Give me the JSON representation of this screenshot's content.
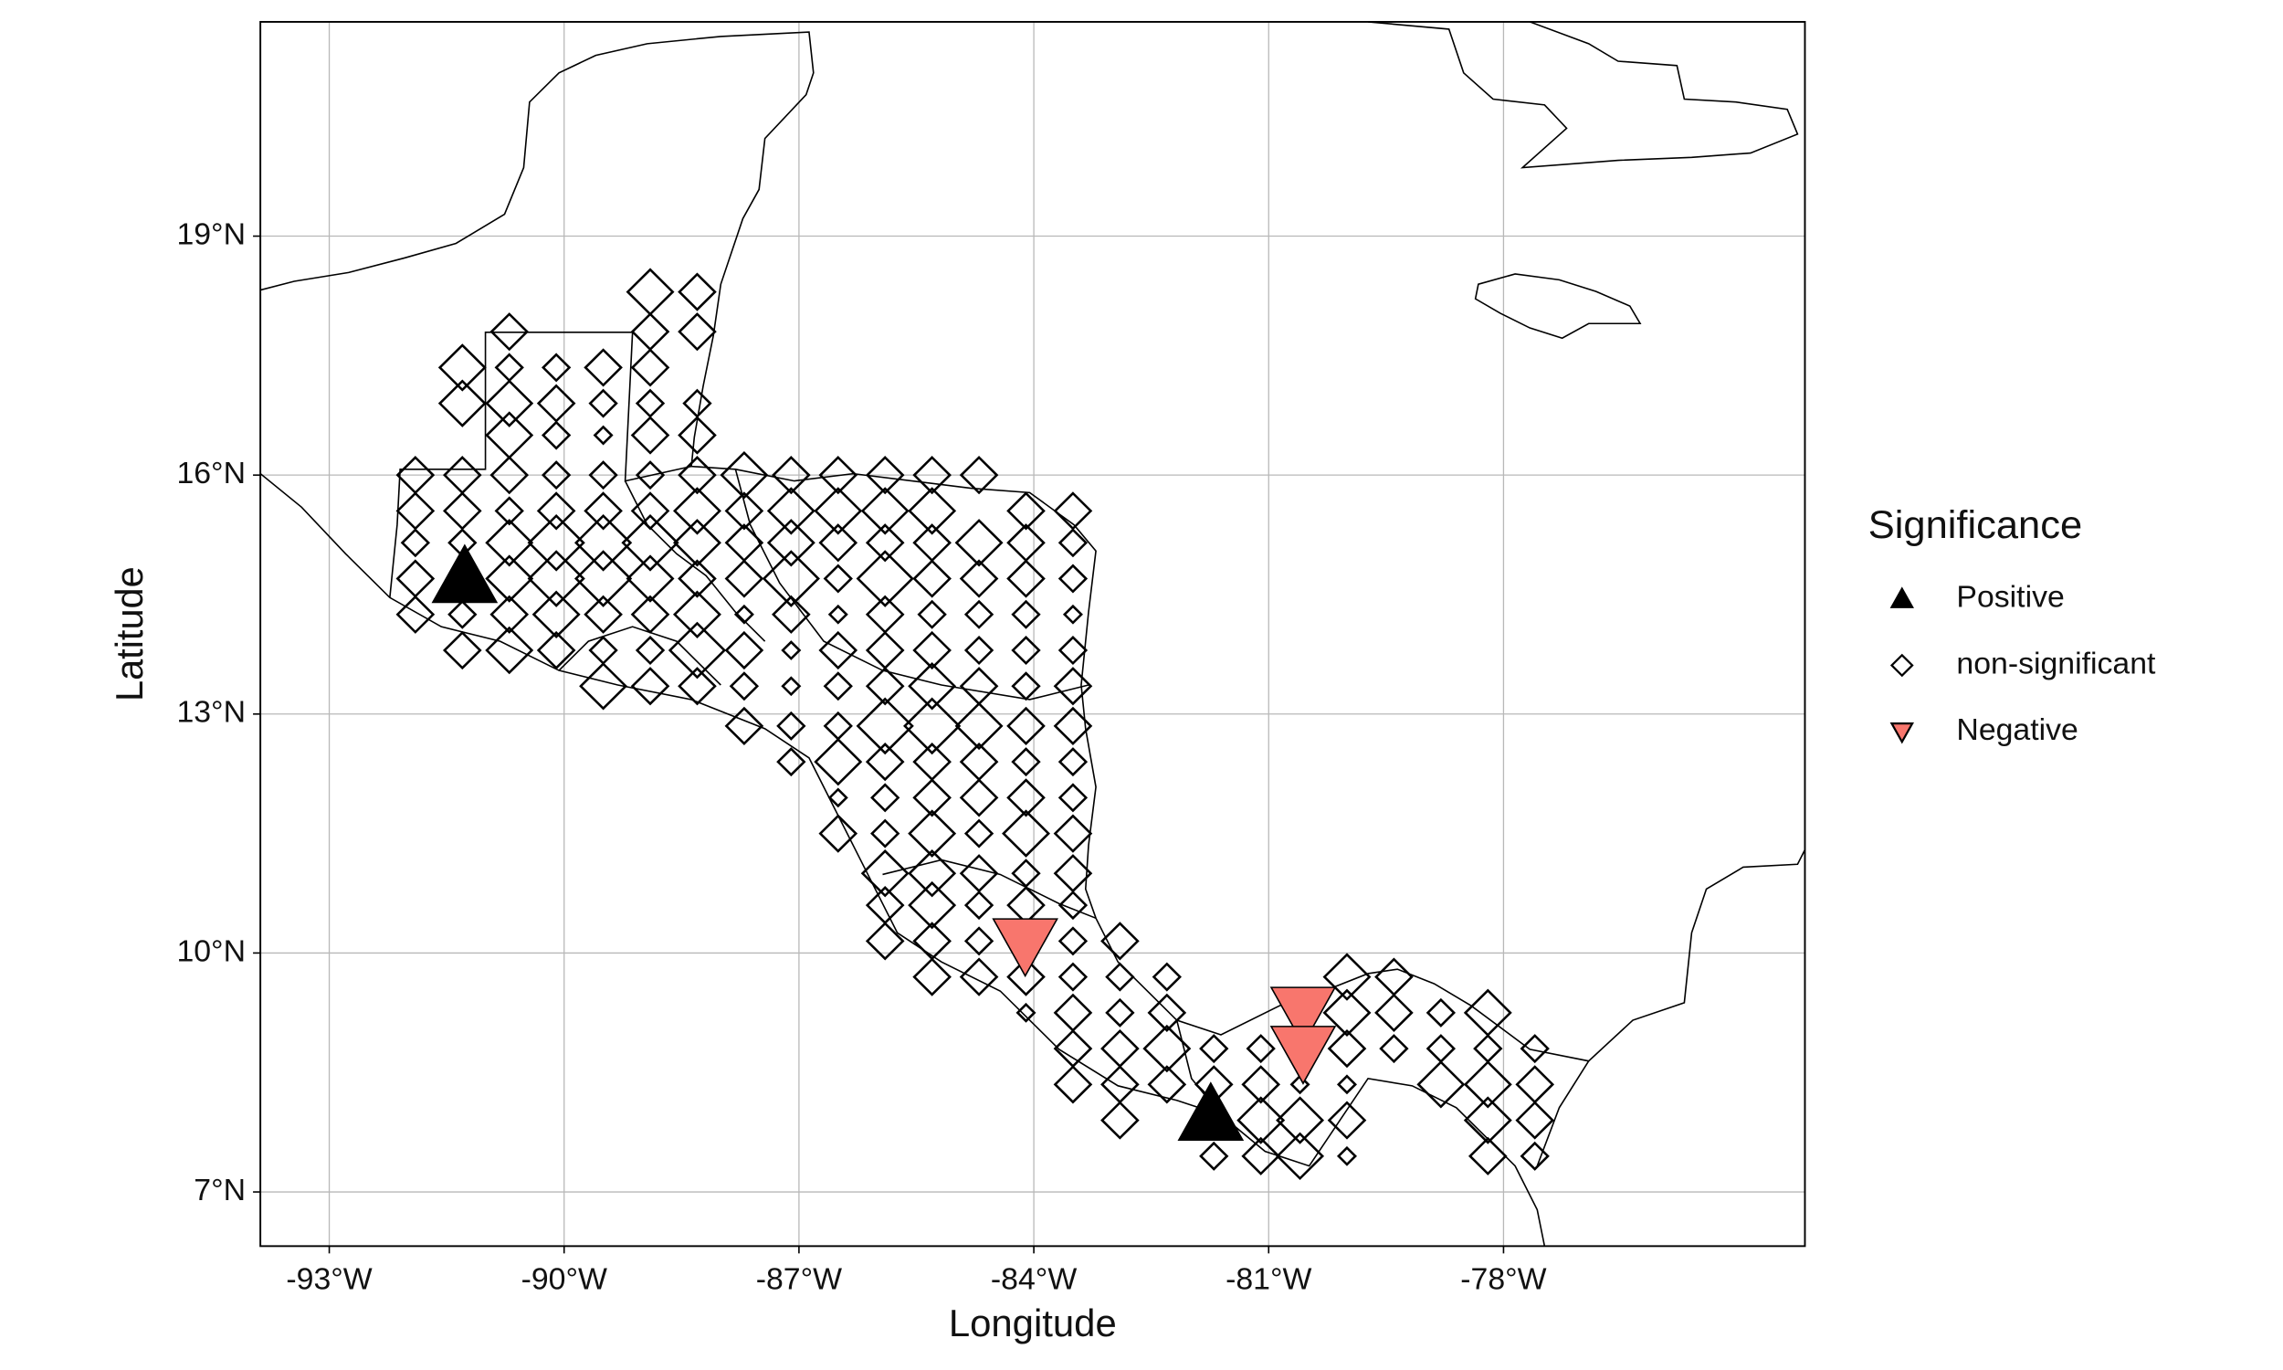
{
  "chart_data": {
    "type": "scatter",
    "xlabel": "Longitude",
    "ylabel": "Latitude",
    "legend_title": "Significance",
    "legend": "right",
    "grid": true,
    "xlim": [
      -93.88,
      -74.15
    ],
    "ylim": [
      6.32,
      21.69
    ],
    "xticks": [
      {
        "value": -93,
        "label": "-93°W"
      },
      {
        "value": -90,
        "label": "-90°W"
      },
      {
        "value": -87,
        "label": "-87°W"
      },
      {
        "value": -84,
        "label": "-84°W"
      },
      {
        "value": -81,
        "label": "-81°W"
      },
      {
        "value": -78,
        "label": "-78°W"
      }
    ],
    "yticks": [
      {
        "value": 7,
        "label": "7°N"
      },
      {
        "value": 10,
        "label": "10°N"
      },
      {
        "value": 13,
        "label": "13°N"
      },
      {
        "value": 16,
        "label": "16°N"
      },
      {
        "value": 19,
        "label": "19°N"
      }
    ],
    "series": [
      {
        "name": "Positive",
        "marker": "triangle-up",
        "color": "#000000",
        "x": [
          -91.27,
          -81.74
        ],
        "y": [
          14.72,
          7.97
        ],
        "sizes": [
          6,
          6
        ]
      },
      {
        "name": "non-significant",
        "marker": "diamond",
        "color": "none",
        "x": [
          -91.9,
          -91.9,
          -91.9,
          -91.9,
          -91.9,
          -91.3,
          -91.3,
          -91.3,
          -91.3,
          -91.3,
          -91.3,
          -91.3,
          -90.7,
          -90.7,
          -90.7,
          -90.7,
          -90.7,
          -90.7,
          -90.7,
          -90.7,
          -90.7,
          -90.7,
          -90.1,
          -90.1,
          -90.1,
          -90.1,
          -90.1,
          -90.1,
          -90.1,
          -90.1,
          -90.1,
          -89.5,
          -89.5,
          -89.5,
          -89.5,
          -89.5,
          -89.5,
          -89.5,
          -89.5,
          -89.5,
          -89.5,
          -88.9,
          -88.9,
          -88.9,
          -88.9,
          -88.9,
          -88.9,
          -88.9,
          -88.9,
          -88.9,
          -88.9,
          -88.9,
          -88.9,
          -88.3,
          -88.3,
          -88.3,
          -88.3,
          -88.3,
          -88.3,
          -88.3,
          -88.3,
          -88.3,
          -88.3,
          -88.3,
          -87.7,
          -87.7,
          -87.7,
          -87.7,
          -87.7,
          -87.7,
          -87.7,
          -87.7,
          -87.1,
          -87.1,
          -87.1,
          -87.1,
          -87.1,
          -87.1,
          -87.1,
          -87.1,
          -87.1,
          -86.5,
          -86.5,
          -86.5,
          -86.5,
          -86.5,
          -86.5,
          -86.5,
          -86.5,
          -86.5,
          -86.5,
          -86.5,
          -85.9,
          -85.9,
          -85.9,
          -85.9,
          -85.9,
          -85.9,
          -85.9,
          -85.9,
          -85.9,
          -85.9,
          -85.9,
          -85.9,
          -85.9,
          -85.9,
          -85.3,
          -85.3,
          -85.3,
          -85.3,
          -85.3,
          -85.3,
          -85.3,
          -85.3,
          -85.3,
          -85.3,
          -85.3,
          -85.3,
          -85.3,
          -85.3,
          -85.3,
          -84.7,
          -84.7,
          -84.7,
          -84.7,
          -84.7,
          -84.7,
          -84.7,
          -84.7,
          -84.7,
          -84.7,
          -84.7,
          -84.7,
          -84.7,
          -84.7,
          -84.1,
          -84.1,
          -84.1,
          -84.1,
          -84.1,
          -84.1,
          -84.1,
          -84.1,
          -84.1,
          -84.1,
          -84.1,
          -84.1,
          -84.1,
          -84.1,
          -83.5,
          -83.5,
          -83.5,
          -83.5,
          -83.5,
          -83.5,
          -83.5,
          -83.5,
          -83.5,
          -83.5,
          -83.5,
          -83.5,
          -83.5,
          -83.5,
          -83.5,
          -83.5,
          -83.5,
          -82.9,
          -82.9,
          -82.9,
          -82.9,
          -82.9,
          -82.9,
          -82.3,
          -82.3,
          -82.3,
          -82.3,
          -81.7,
          -81.7,
          -81.7,
          -81.1,
          -81.1,
          -81.1,
          -81.1,
          -80.6,
          -80.6,
          -80.6,
          -80.0,
          -80.0,
          -80.0,
          -80.0,
          -80.0,
          -80.0,
          -79.4,
          -79.4,
          -79.4,
          -78.8,
          -78.8,
          -78.8,
          -78.2,
          -78.2,
          -78.2,
          -78.2,
          -78.2,
          -77.6,
          -77.6,
          -77.6,
          -77.6
        ],
        "y": [
          16.0,
          15.55,
          15.15,
          14.7,
          14.25,
          17.35,
          16.9,
          16.0,
          15.55,
          15.15,
          14.25,
          13.8,
          17.8,
          17.35,
          16.9,
          16.5,
          16.0,
          15.55,
          15.15,
          14.7,
          14.25,
          13.8,
          17.35,
          16.9,
          16.5,
          16.0,
          15.55,
          15.15,
          14.7,
          14.25,
          13.8,
          17.35,
          16.9,
          16.5,
          16.0,
          15.55,
          15.15,
          14.7,
          14.25,
          13.8,
          13.35,
          18.3,
          17.8,
          17.35,
          16.9,
          16.5,
          16.0,
          15.55,
          15.15,
          14.7,
          14.25,
          13.8,
          13.35,
          18.3,
          17.8,
          16.9,
          16.5,
          16.0,
          15.55,
          15.15,
          14.7,
          14.25,
          13.8,
          13.35,
          16.0,
          15.55,
          15.15,
          14.7,
          14.25,
          13.8,
          13.35,
          12.85,
          16.0,
          15.55,
          15.15,
          14.7,
          14.25,
          13.8,
          13.35,
          12.85,
          12.4,
          16.0,
          15.55,
          15.15,
          14.7,
          14.25,
          13.8,
          13.35,
          12.85,
          12.4,
          11.95,
          11.5,
          16.0,
          15.55,
          15.15,
          14.7,
          14.25,
          13.8,
          13.35,
          12.85,
          12.4,
          11.95,
          11.5,
          11.0,
          10.6,
          10.15,
          16.0,
          15.55,
          15.15,
          14.7,
          14.25,
          13.8,
          13.35,
          12.85,
          12.4,
          11.95,
          11.5,
          11.0,
          10.6,
          10.15,
          9.7,
          16.0,
          15.15,
          14.7,
          14.25,
          13.8,
          13.35,
          12.85,
          12.4,
          11.95,
          11.5,
          11.0,
          10.6,
          10.15,
          9.7,
          15.55,
          15.15,
          14.7,
          14.25,
          13.8,
          13.35,
          12.85,
          12.4,
          11.95,
          11.5,
          11.0,
          10.6,
          9.7,
          9.25,
          15.55,
          15.15,
          14.7,
          14.25,
          13.8,
          13.35,
          12.85,
          12.4,
          11.95,
          11.5,
          11.0,
          10.6,
          10.15,
          9.7,
          9.25,
          8.8,
          8.35,
          10.15,
          9.7,
          9.25,
          8.8,
          8.35,
          7.9,
          9.7,
          9.25,
          8.8,
          8.35,
          8.8,
          8.35,
          7.45,
          8.8,
          8.35,
          7.9,
          7.45,
          8.35,
          7.9,
          7.45,
          9.7,
          9.25,
          8.8,
          8.35,
          7.9,
          7.45,
          9.7,
          9.25,
          8.8,
          9.25,
          8.8,
          8.35,
          9.25,
          8.8,
          8.35,
          7.9,
          7.45,
          8.8,
          8.35,
          7.9,
          7.45
        ],
        "sizes": [
          3,
          3,
          2,
          3,
          3,
          4,
          4,
          3,
          3,
          2,
          2,
          3,
          3,
          2,
          4,
          4,
          3,
          2,
          4,
          4,
          3,
          4,
          2,
          3,
          2,
          2,
          3,
          5,
          5,
          4,
          3,
          3,
          2,
          1,
          2,
          3,
          5,
          5,
          3,
          2,
          4,
          4,
          3,
          3,
          2,
          3,
          2,
          3,
          5,
          4,
          3,
          2,
          3,
          3,
          3,
          2,
          3,
          3,
          4,
          4,
          3,
          4,
          5,
          3,
          4,
          3,
          3,
          3,
          1,
          3,
          2,
          3,
          3,
          4,
          4,
          5,
          3,
          1,
          1,
          2,
          2,
          3,
          4,
          3,
          2,
          1,
          3,
          2,
          2,
          4,
          1,
          3,
          3,
          4,
          3,
          5,
          3,
          3,
          3,
          5,
          3,
          2,
          2,
          4,
          3,
          3,
          3,
          4,
          3,
          3,
          2,
          3,
          4,
          5,
          3,
          3,
          4,
          4,
          4,
          3,
          3,
          3,
          4,
          3,
          2,
          2,
          3,
          4,
          3,
          3,
          2,
          3,
          2,
          2,
          3,
          3,
          3,
          3,
          2,
          2,
          2,
          3,
          2,
          3,
          4,
          2,
          3,
          3,
          1,
          3,
          2,
          2,
          1,
          2,
          3,
          3,
          2,
          2,
          3,
          3,
          2,
          2,
          2,
          3,
          3,
          3,
          3,
          2,
          2,
          3,
          3,
          3,
          2,
          3,
          4,
          3,
          2,
          3,
          2,
          2,
          3,
          4,
          3,
          1,
          4,
          4,
          4,
          4,
          3,
          1,
          3,
          1,
          3,
          3,
          2,
          2,
          2,
          4,
          4,
          2,
          4,
          4,
          3,
          2,
          3,
          3,
          2
        ]
      },
      {
        "name": "Negative",
        "marker": "triangle-down",
        "color": "#f8766d",
        "x": [
          -84.11,
          -80.56,
          -80.56
        ],
        "y": [
          10.11,
          9.25,
          8.76
        ],
        "sizes": [
          6,
          6,
          6
        ]
      }
    ]
  }
}
